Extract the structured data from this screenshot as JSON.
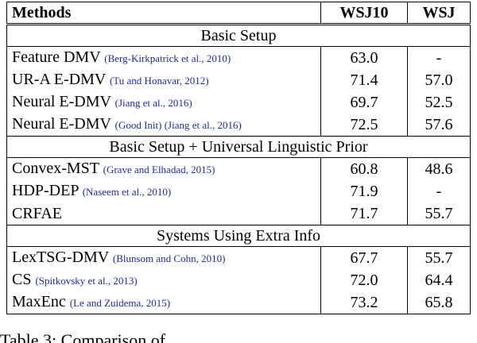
{
  "table": {
    "header": [
      "Methods",
      "WSJ10",
      "WSJ"
    ],
    "sections": [
      {
        "title": "Basic Setup",
        "rows": [
          {
            "method": "Feature DMV",
            "citation": "(Berg-Kirkpatrick et al., 2010)",
            "wsj10": "63.0",
            "wsj": "-"
          },
          {
            "method": "UR-A E-DMV",
            "citation": "(Tu and Honavar, 2012)",
            "wsj10": "71.4",
            "wsj": "57.0"
          },
          {
            "method": "Neural E-DMV",
            "citation": "(Jiang et al., 2016)",
            "wsj10": "69.7",
            "wsj": "52.5"
          },
          {
            "method": "Neural E-DMV",
            "citation": "(Good Init) (Jiang et al., 2016)",
            "wsj10": "72.5",
            "wsj": "57.6"
          }
        ]
      },
      {
        "title": "Basic Setup + Universal Linguistic Prior",
        "rows": [
          {
            "method": "Convex-MST",
            "citation": "(Grave and Elhadad, 2015)",
            "wsj10": "60.8",
            "wsj": "48.6"
          },
          {
            "method": "HDP-DEP",
            "citation": "(Naseem et al., 2010)",
            "wsj10": "71.9",
            "wsj": "-"
          },
          {
            "method": "CRFAE",
            "citation": "",
            "wsj10": "71.7",
            "wsj": "55.7"
          }
        ]
      },
      {
        "title": "Systems Using Extra Info",
        "rows": [
          {
            "method": "LexTSG-DMV",
            "citation": "(Blunsom and Cohn, 2010)",
            "wsj10": "67.7",
            "wsj": "55.7"
          },
          {
            "method": "CS",
            "citation": "(Spitkovsky et al., 2013)",
            "wsj10": "72.0",
            "wsj": "64.4"
          },
          {
            "method": "MaxEnc",
            "citation": "(Le and Zuidema, 2015)",
            "wsj10": "73.2",
            "wsj": "65.8"
          }
        ]
      }
    ]
  },
  "caption": "Table 3: Comparison of"
}
